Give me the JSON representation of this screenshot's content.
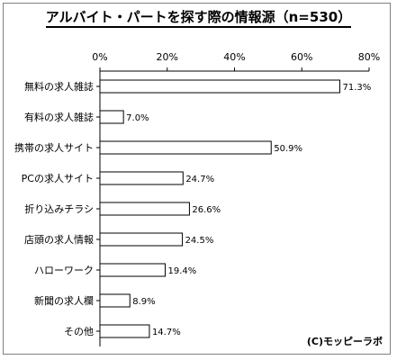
{
  "chart_data": {
    "type": "bar",
    "orientation": "horizontal",
    "title": "アルバイト・パートを探す際の情報源（n=530）",
    "categories": [
      "無料の求人雑誌",
      "有料の求人雑誌",
      "携帯の求人サイト",
      "PCの求人サイト",
      "折り込みチラシ",
      "店頭の求人情報",
      "ハローワーク",
      "新聞の求人欄",
      "その他"
    ],
    "values": [
      71.3,
      7.0,
      50.9,
      24.7,
      26.6,
      24.5,
      19.4,
      8.9,
      14.7
    ],
    "value_labels": [
      "71.3%",
      "7.0%",
      "50.9%",
      "24.7%",
      "26.6%",
      "24.5%",
      "19.4%",
      "8.9%",
      "14.7%"
    ],
    "x_ticks": [
      "0%",
      "20%",
      "40%",
      "60%",
      "80%"
    ],
    "xlim": [
      0,
      80
    ],
    "bar_color": "#ffffff",
    "bar_border": "#000000",
    "grid": false,
    "legend": "none"
  },
  "copyright": "(C)モッピーラボ"
}
